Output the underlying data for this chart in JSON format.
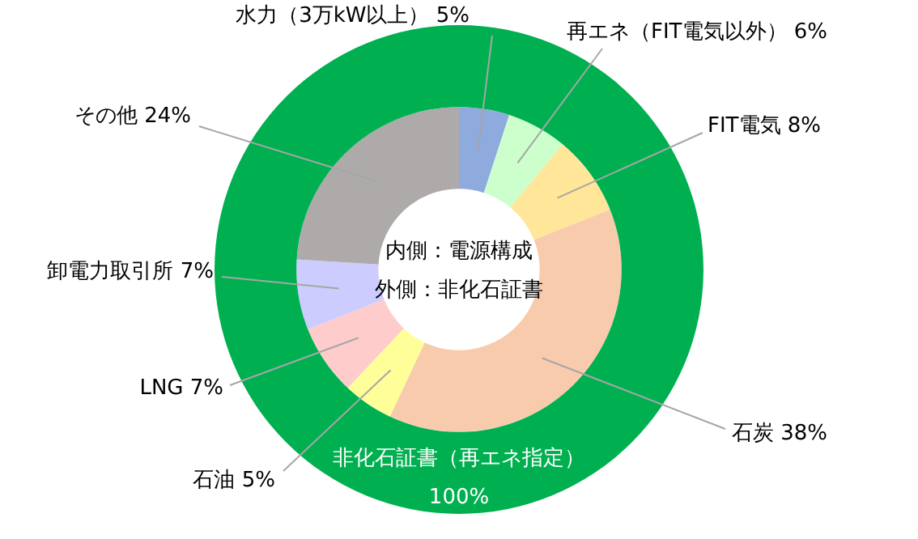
{
  "chart_data": {
    "type": "donut",
    "categories": [
      "水力（3万kW以上）",
      "再エネ（FIT電気以外）",
      "FIT電気",
      "石炭",
      "石油",
      "LNG",
      "卸電力取引所",
      "その他",
      "非化石証書（再エネ指定）"
    ],
    "series": [
      {
        "values": [
          null,
          null,
          null,
          null,
          null,
          null,
          null,
          null,
          100
        ],
        "colors": [
          "#8faadc",
          "#ccffcc",
          "#ffe699",
          "#f8cbad",
          "#ffff99",
          "#ffcccc",
          "#ccccff",
          "#aeaaaa",
          "#00b050"
        ],
        "value_labels": [
          null,
          null,
          null,
          null,
          null,
          null,
          null,
          null,
          "100%"
        ]
      },
      {
        "values": [
          5,
          6,
          8,
          38,
          5,
          7,
          7,
          24,
          null
        ],
        "colors": [
          "#8faadc",
          "#ccffcc",
          "#ffe699",
          "#f8cbad",
          "#ffff99",
          "#ffcccc",
          "#ccccff",
          "#aeaaaa",
          "#00b050"
        ],
        "value_labels": [
          "5%",
          "6%",
          "8%",
          "38%",
          "5%",
          "7%",
          "7%",
          "24%",
          null
        ]
      }
    ],
    "annotations": [
      "内側：電源構成",
      "外側：非化石証書"
    ]
  }
}
